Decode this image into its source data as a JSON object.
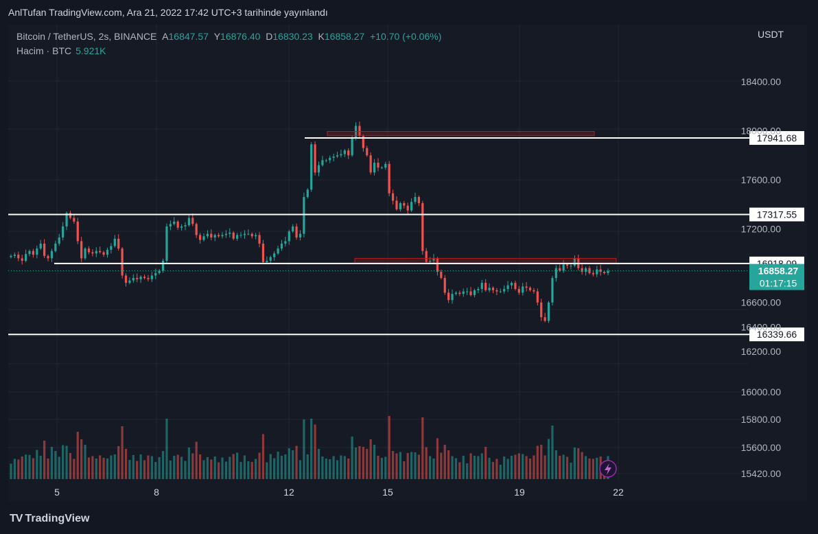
{
  "header": {
    "published": "AnlTufan TradingView.com, Ara 21, 2022 17:42 UTC+3 tarihinde yayınlandı"
  },
  "legend": {
    "symbol": "Bitcoin / TetherUS, 2s, BINANCE",
    "open_label": "A",
    "open": "16847.57",
    "high_label": "Y",
    "high": "16876.40",
    "low_label": "D",
    "low": "16830.23",
    "close_label": "K",
    "close": "16858.27",
    "change": "+10.70 (+0.06%)",
    "volume_label": "Hacim · BTC",
    "volume": "5.921K"
  },
  "currency": "USDT",
  "branding": {
    "logo_text": "TradingView"
  },
  "colors": {
    "up": "#26a69a",
    "down": "#ef5350",
    "background": "#131722",
    "level_line": "#ffffff",
    "zone": "#b71c1c"
  },
  "chart_data": {
    "type": "candlestick",
    "x_ticks": [
      "5",
      "8",
      "12",
      "15",
      "19",
      "22"
    ],
    "y_ticks": [
      "18400.00",
      "18000.00",
      "17600.00",
      "17200.00",
      "16600.00",
      "16400.00",
      "16200.00",
      "16000.00",
      "15800.00",
      "15600.00",
      "15420.00"
    ],
    "level_lines": [
      {
        "label": "17941.68",
        "value": 17941.68
      },
      {
        "label": "17317.55",
        "value": 17317.55
      },
      {
        "label": "16918.09",
        "value": 16918.09
      },
      {
        "label": "16339.66",
        "value": 16339.66
      }
    ],
    "zones": [
      {
        "from": 17960,
        "to": 17995
      },
      {
        "from": 16918,
        "to": 16960
      }
    ],
    "last_price": {
      "label": "16858.27",
      "countdown": "01:17:15"
    },
    "closes": [
      16980,
      16990,
      16960,
      16940,
      16995,
      17020,
      16990,
      17040,
      17080,
      16980,
      16960,
      17020,
      17080,
      17130,
      17220,
      17330,
      17290,
      17260,
      17100,
      16960,
      17040,
      17010,
      17000,
      17020,
      17010,
      16990,
      17030,
      17060,
      17120,
      17040,
      16820,
      16760,
      16780,
      16800,
      16790,
      16810,
      16800,
      16790,
      16820,
      16840,
      16860,
      16940,
      17220,
      17240,
      17260,
      17210,
      17220,
      17230,
      17290,
      17240,
      17150,
      17110,
      17140,
      17160,
      17130,
      17150,
      17140,
      17150,
      17160,
      17170,
      17120,
      17150,
      17150,
      17160,
      17160,
      17140,
      17150,
      17080,
      16930,
      16940,
      16970,
      17000,
      17040,
      17080,
      17100,
      17180,
      17220,
      17130,
      17160,
      17460,
      17520,
      17890,
      17660,
      17720,
      17760,
      17760,
      17780,
      17790,
      17800,
      17810,
      17840,
      17800,
      17940,
      18040,
      17960,
      17860,
      17800,
      17660,
      17740,
      17700,
      17700,
      17730,
      17490,
      17430,
      17360,
      17410,
      17390,
      17350,
      17420,
      17460,
      17410,
      17020,
      16930,
      16940,
      16960,
      16850,
      16800,
      16680,
      16620,
      16670,
      16680,
      16670,
      16690,
      16690,
      16660,
      16700,
      16710,
      16760,
      16700,
      16720,
      16700,
      16690,
      16690,
      16710,
      16740,
      16760,
      16710,
      16680,
      16730,
      16720,
      16700,
      16690,
      16600,
      16480,
      16450,
      16600,
      16800,
      16880,
      16860,
      16910,
      16900,
      16900,
      16960,
      16880,
      16850,
      16880,
      16840,
      16830,
      16870,
      16850,
      16840,
      16858
    ]
  }
}
